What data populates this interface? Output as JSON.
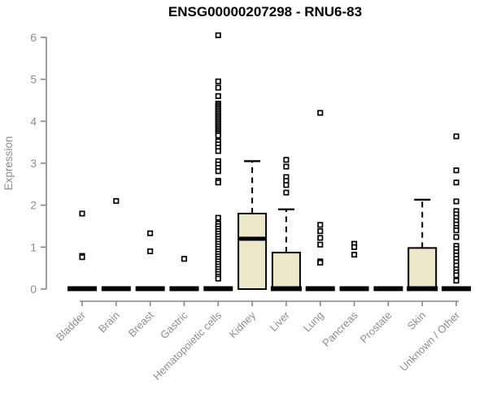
{
  "chart_data": {
    "type": "boxplot",
    "title": "ENSG00000207298 - RNU6-83",
    "ylabel": "Expression",
    "xlabel": "",
    "ylim": [
      0,
      6.2
    ],
    "yticks": [
      0,
      1,
      2,
      3,
      4,
      5,
      6
    ],
    "grid": false,
    "legend": "none",
    "categories": [
      "Bladder",
      "Brain",
      "Breast",
      "Gastric",
      "Hematopoietic cells",
      "Kidney",
      "Liver",
      "Lung",
      "Pancreas",
      "Prostate",
      "Skin",
      "Unknown / Other"
    ],
    "boxes": [
      {
        "category": "Bladder",
        "q1": 0,
        "median": 0,
        "q3": 0,
        "whisker_low": 0,
        "whisker_high": 0,
        "outliers": [
          1.8,
          0.79,
          0.76
        ]
      },
      {
        "category": "Brain",
        "q1": 0,
        "median": 0,
        "q3": 0,
        "whisker_low": 0,
        "whisker_high": 0,
        "outliers": [
          2.1
        ]
      },
      {
        "category": "Breast",
        "q1": 0,
        "median": 0,
        "q3": 0,
        "whisker_low": 0,
        "whisker_high": 0,
        "outliers": [
          1.33,
          0.9
        ]
      },
      {
        "category": "Gastric",
        "q1": 0,
        "median": 0,
        "q3": 0,
        "whisker_low": 0,
        "whisker_high": 0,
        "outliers": [
          0.72
        ]
      },
      {
        "category": "Hematopoietic cells",
        "q1": 0,
        "median": 0,
        "q3": 0,
        "whisker_low": 0,
        "whisker_high": 0,
        "outliers": [
          6.05,
          4.95,
          4.8,
          4.6,
          4.42,
          4.38,
          4.34,
          4.3,
          4.26,
          4.22,
          4.18,
          4.14,
          4.1,
          4.06,
          4.02,
          3.98,
          3.94,
          3.9,
          3.86,
          3.82,
          3.78,
          3.74,
          3.7,
          3.66,
          3.52,
          3.45,
          3.37,
          3.29,
          3.05,
          2.97,
          2.89,
          2.81,
          2.58,
          2.54,
          1.7,
          1.56,
          1.5,
          1.44,
          1.38,
          1.32,
          1.26,
          1.2,
          1.14,
          1.08,
          1.02,
          0.96,
          0.9,
          0.84,
          0.78,
          0.72,
          0.66,
          0.6,
          0.54,
          0.48,
          0.42,
          0.36,
          0.3,
          0.25
        ]
      },
      {
        "category": "Kidney",
        "q1": 0,
        "median": 1.2,
        "q3": 1.8,
        "whisker_low": 0,
        "whisker_high": 3.05,
        "outliers": []
      },
      {
        "category": "Liver",
        "q1": 0,
        "median": 0,
        "q3": 0.87,
        "whisker_low": 0,
        "whisker_high": 1.9,
        "outliers": [
          3.08,
          2.92,
          2.67,
          2.58,
          2.48,
          2.3
        ]
      },
      {
        "category": "Lung",
        "q1": 0,
        "median": 0,
        "q3": 0,
        "whisker_low": 0,
        "whisker_high": 0,
        "outliers": [
          4.2,
          1.53,
          1.38,
          1.22,
          1.06,
          0.66,
          0.63
        ]
      },
      {
        "category": "Pancreas",
        "q1": 0,
        "median": 0,
        "q3": 0,
        "whisker_low": 0,
        "whisker_high": 0,
        "outliers": [
          1.08,
          1.0,
          0.82
        ]
      },
      {
        "category": "Prostate",
        "q1": 0,
        "median": 0,
        "q3": 0,
        "whisker_low": 0,
        "whisker_high": 0,
        "outliers": []
      },
      {
        "category": "Skin",
        "q1": 0,
        "median": 0,
        "q3": 0.98,
        "whisker_low": 0,
        "whisker_high": 2.13,
        "outliers": []
      },
      {
        "category": "Unknown / Other",
        "q1": 0,
        "median": 0,
        "q3": 0,
        "whisker_low": 0,
        "whisker_high": 0,
        "outliers": [
          3.64,
          2.83,
          2.54,
          2.09,
          1.86,
          1.78,
          1.7,
          1.62,
          1.54,
          1.46,
          1.4,
          1.24,
          1.03,
          0.96,
          0.88,
          0.8,
          0.72,
          0.64,
          0.56,
          0.47,
          0.4,
          0.33,
          0.2
        ]
      }
    ]
  },
  "colors": {
    "box_fill": "#EDE7CB",
    "box_border": "#000000",
    "median": "#000000",
    "outlier_stroke": "#000000",
    "outlier_fill": "#ffffff",
    "axis_line": "#878787",
    "tick_text": "#8d8d8d",
    "title_text": "#000000",
    "background": "#ffffff"
  }
}
